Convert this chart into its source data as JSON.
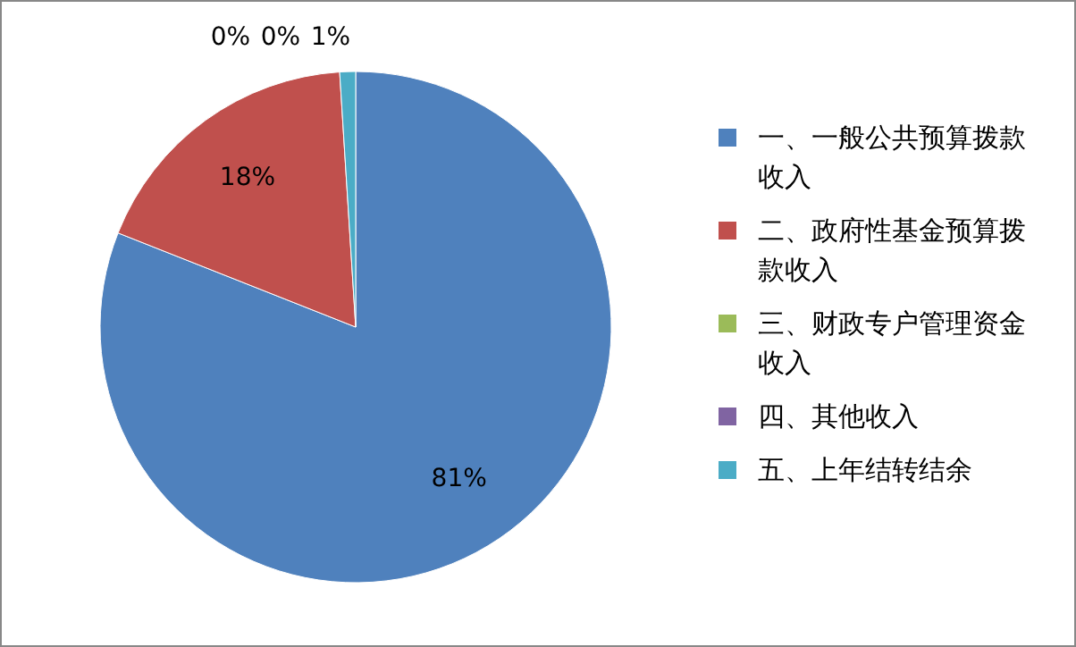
{
  "chart_data": {
    "type": "pie",
    "categories": [
      "一、一般公共预算拨款收入",
      "二、政府性基金预算拨款收入",
      "三、财政专户管理资金收入",
      "四、其他收入",
      "五、上年结转结余"
    ],
    "values": [
      81,
      18,
      0,
      0,
      1
    ],
    "colors": [
      "#4f81bd",
      "#c0504d",
      "#9bbb59",
      "#8064a2",
      "#4bacc6"
    ],
    "value_labels": [
      "81%",
      "18%",
      "0%",
      "0%",
      "1%"
    ],
    "legend": "right"
  }
}
